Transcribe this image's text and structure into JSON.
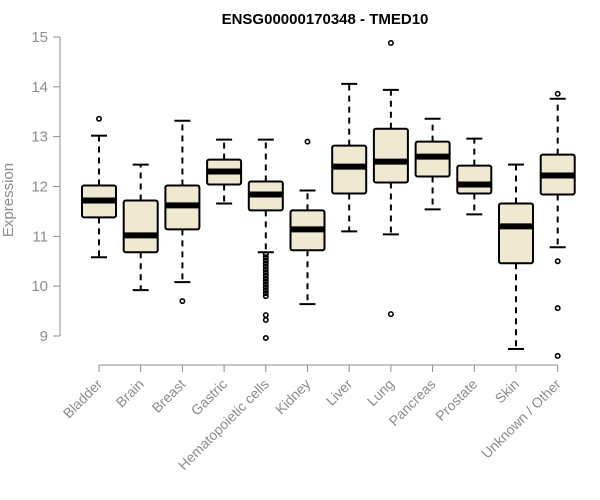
{
  "chart_data": {
    "type": "boxplot",
    "title": "ENSG00000170348 - TMED10",
    "ylabel": "Expression",
    "xlabel": "",
    "ylim": [
      8.45,
      15.05
    ],
    "yticks": [
      9,
      10,
      11,
      12,
      13,
      14,
      15
    ],
    "box_fill": "#efe9d2",
    "median_color": "#000000",
    "categories": [
      "Bladder",
      "Brain",
      "Breast",
      "Gastric",
      "Hematopoietic cells",
      "Kidney",
      "Liver",
      "Lung",
      "Pancreas",
      "Prostate",
      "Skin",
      "Unknown / Other"
    ],
    "series": [
      {
        "name": "Bladder",
        "whisker_low": 10.58,
        "q1": 11.38,
        "median": 11.72,
        "q3": 12.02,
        "whisker_high": 13.02,
        "outliers": [
          13.36
        ]
      },
      {
        "name": "Brain",
        "whisker_low": 9.92,
        "q1": 10.68,
        "median": 11.02,
        "q3": 11.72,
        "whisker_high": 12.44,
        "outliers": []
      },
      {
        "name": "Breast",
        "whisker_low": 10.08,
        "q1": 11.14,
        "median": 11.62,
        "q3": 12.02,
        "whisker_high": 13.32,
        "outliers": [
          9.7
        ]
      },
      {
        "name": "Gastric",
        "whisker_low": 11.66,
        "q1": 12.04,
        "median": 12.3,
        "q3": 12.54,
        "whisker_high": 12.94,
        "outliers": []
      },
      {
        "name": "Hematopoietic cells",
        "whisker_low": 10.68,
        "q1": 11.52,
        "median": 11.84,
        "q3": 12.1,
        "whisker_high": 12.94,
        "outliers": [
          10.64,
          10.58,
          10.52,
          10.46,
          10.4,
          10.34,
          10.28,
          10.22,
          10.16,
          10.1,
          10.04,
          9.98,
          9.92,
          9.86,
          9.8,
          9.42,
          9.32,
          8.96
        ]
      },
      {
        "name": "Kidney",
        "whisker_low": 9.64,
        "q1": 10.72,
        "median": 11.14,
        "q3": 11.52,
        "whisker_high": 11.92,
        "outliers": [
          12.9
        ]
      },
      {
        "name": "Liver",
        "whisker_low": 11.1,
        "q1": 11.86,
        "median": 12.4,
        "q3": 12.82,
        "whisker_high": 14.06,
        "outliers": []
      },
      {
        "name": "Lung",
        "whisker_low": 11.04,
        "q1": 12.08,
        "median": 12.5,
        "q3": 13.16,
        "whisker_high": 13.94,
        "outliers": [
          14.88,
          9.44
        ]
      },
      {
        "name": "Pancreas",
        "whisker_low": 11.54,
        "q1": 12.2,
        "median": 12.6,
        "q3": 12.9,
        "whisker_high": 13.36,
        "outliers": []
      },
      {
        "name": "Prostate",
        "whisker_low": 11.44,
        "q1": 11.86,
        "median": 12.04,
        "q3": 12.42,
        "whisker_high": 12.96,
        "outliers": []
      },
      {
        "name": "Skin",
        "whisker_low": 8.74,
        "q1": 10.46,
        "median": 11.2,
        "q3": 11.66,
        "whisker_high": 12.44,
        "outliers": []
      },
      {
        "name": "Unknown / Other",
        "whisker_low": 10.78,
        "q1": 11.84,
        "median": 12.22,
        "q3": 12.64,
        "whisker_high": 13.76,
        "outliers": [
          13.86,
          10.5,
          9.56,
          8.6
        ]
      }
    ]
  }
}
